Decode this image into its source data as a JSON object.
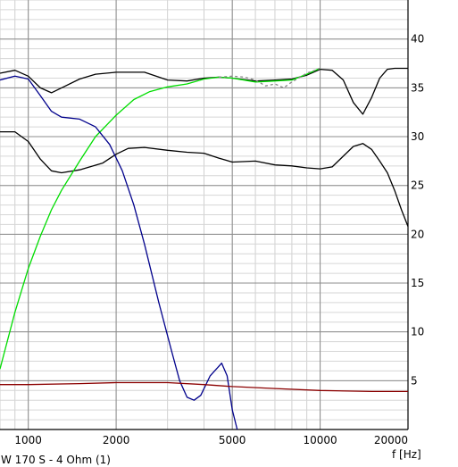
{
  "chart_data": {
    "type": "line",
    "xlabel": "f [Hz]",
    "caption": "W 170 S - 4 Ohm (1)",
    "x_scale": "log",
    "xlim": [
      800,
      20000
    ],
    "ylim": [
      0,
      44
    ],
    "x_ticks": [
      1000,
      2000,
      5000,
      10000,
      20000
    ],
    "x_tick_labels": [
      "1000",
      "2000",
      "5000",
      "10000",
      "20000"
    ],
    "y_ticks": [
      5,
      10,
      15,
      20,
      25,
      30,
      35,
      40
    ],
    "y_tick_labels": [
      "5",
      "10",
      "15",
      "20",
      "25",
      "30",
      "35",
      "40"
    ],
    "grid": true,
    "series": [
      {
        "color": "#000000",
        "style": "solid",
        "points": [
          [
            800,
            36.5
          ],
          [
            900,
            36.8
          ],
          [
            1000,
            36.2
          ],
          [
            1100,
            35.0
          ],
          [
            1200,
            34.5
          ],
          [
            1300,
            35.0
          ],
          [
            1500,
            35.9
          ],
          [
            1700,
            36.4
          ],
          [
            2000,
            36.6
          ],
          [
            2500,
            36.6
          ],
          [
            3000,
            35.8
          ],
          [
            3500,
            35.7
          ],
          [
            4000,
            36.0
          ],
          [
            4500,
            36.1
          ],
          [
            5000,
            36.0
          ],
          [
            6000,
            35.7
          ],
          [
            7000,
            35.8
          ],
          [
            8000,
            35.9
          ],
          [
            9000,
            36.3
          ],
          [
            10000,
            36.9
          ],
          [
            11000,
            36.8
          ],
          [
            12000,
            35.8
          ],
          [
            13000,
            33.5
          ],
          [
            14000,
            32.3
          ],
          [
            15000,
            34.0
          ],
          [
            16000,
            36.0
          ],
          [
            17000,
            36.9
          ],
          [
            18000,
            37.0
          ],
          [
            20000,
            37.0
          ]
        ]
      },
      {
        "color": "#000000",
        "style": "solid",
        "points": [
          [
            800,
            30.5
          ],
          [
            900,
            30.5
          ],
          [
            1000,
            29.5
          ],
          [
            1100,
            27.7
          ],
          [
            1200,
            26.5
          ],
          [
            1300,
            26.3
          ],
          [
            1500,
            26.6
          ],
          [
            1800,
            27.3
          ],
          [
            2000,
            28.2
          ],
          [
            2200,
            28.8
          ],
          [
            2500,
            28.9
          ],
          [
            3000,
            28.6
          ],
          [
            3500,
            28.4
          ],
          [
            4000,
            28.3
          ],
          [
            4500,
            27.8
          ],
          [
            5000,
            27.4
          ],
          [
            6000,
            27.5
          ],
          [
            7000,
            27.1
          ],
          [
            8000,
            27.0
          ],
          [
            9000,
            26.8
          ],
          [
            10000,
            26.7
          ],
          [
            11000,
            26.9
          ],
          [
            12000,
            28.0
          ],
          [
            13000,
            29.0
          ],
          [
            14000,
            29.3
          ],
          [
            15000,
            28.7
          ],
          [
            16000,
            27.5
          ],
          [
            17000,
            26.3
          ],
          [
            18000,
            24.5
          ],
          [
            19000,
            22.5
          ],
          [
            20000,
            20.8
          ]
        ]
      },
      {
        "color": "#00dd00",
        "style": "solid",
        "points": [
          [
            800,
            6.2
          ],
          [
            900,
            12.0
          ],
          [
            1000,
            16.5
          ],
          [
            1100,
            19.8
          ],
          [
            1200,
            22.5
          ],
          [
            1300,
            24.5
          ],
          [
            1500,
            27.5
          ],
          [
            1700,
            30.0
          ],
          [
            1900,
            31.5
          ],
          [
            2000,
            32.2
          ],
          [
            2300,
            33.8
          ],
          [
            2600,
            34.6
          ],
          [
            3000,
            35.1
          ],
          [
            3500,
            35.4
          ],
          [
            4000,
            35.9
          ],
          [
            4500,
            36.1
          ],
          [
            5000,
            36.0
          ],
          [
            6000,
            35.6
          ],
          [
            7000,
            35.7
          ],
          [
            8000,
            35.8
          ],
          [
            9000,
            36.4
          ],
          [
            10000,
            37.0
          ]
        ]
      },
      {
        "color": "#888888",
        "style": "dashed",
        "points": [
          [
            4500,
            36.1
          ],
          [
            5000,
            36.2
          ],
          [
            5500,
            36.1
          ],
          [
            6000,
            35.8
          ],
          [
            6500,
            35.2
          ],
          [
            7000,
            35.4
          ],
          [
            7500,
            35.0
          ],
          [
            8000,
            35.6
          ],
          [
            9000,
            36.5
          ],
          [
            10000,
            37.0
          ]
        ]
      },
      {
        "color": "#00008b",
        "style": "solid",
        "points": [
          [
            800,
            35.8
          ],
          [
            900,
            36.2
          ],
          [
            1000,
            35.9
          ],
          [
            1100,
            34.2
          ],
          [
            1200,
            32.6
          ],
          [
            1300,
            32.0
          ],
          [
            1500,
            31.8
          ],
          [
            1700,
            31.0
          ],
          [
            1900,
            29.2
          ],
          [
            2100,
            26.5
          ],
          [
            2300,
            23.0
          ],
          [
            2500,
            19.0
          ],
          [
            2800,
            13.0
          ],
          [
            3100,
            8.0
          ],
          [
            3300,
            5.0
          ],
          [
            3500,
            3.3
          ],
          [
            3700,
            3.0
          ],
          [
            3900,
            3.5
          ],
          [
            4200,
            5.5
          ],
          [
            4600,
            6.8
          ],
          [
            4800,
            5.5
          ],
          [
            5000,
            2.0
          ],
          [
            5200,
            0.0
          ]
        ]
      },
      {
        "color": "#8b0000",
        "style": "solid",
        "points": [
          [
            800,
            4.6
          ],
          [
            1000,
            4.6
          ],
          [
            1500,
            4.7
          ],
          [
            2000,
            4.8
          ],
          [
            3000,
            4.8
          ],
          [
            4000,
            4.6
          ],
          [
            5000,
            4.4
          ],
          [
            7000,
            4.2
          ],
          [
            10000,
            4.0
          ],
          [
            15000,
            3.9
          ],
          [
            20000,
            3.9
          ]
        ]
      }
    ]
  }
}
